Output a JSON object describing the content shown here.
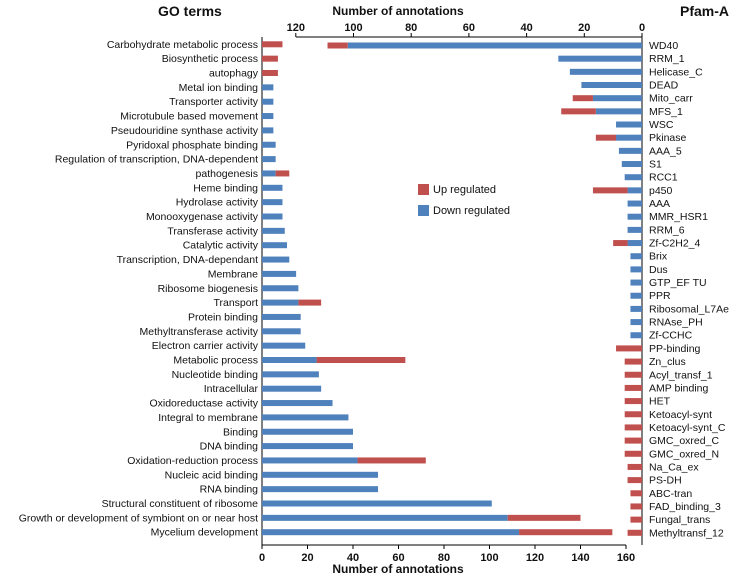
{
  "chart_data": [
    {
      "type": "bar",
      "orientation": "horizontal",
      "stacked": true,
      "title": "GO terms",
      "xlabel": "Number of annotations",
      "xlim": [
        0,
        160
      ],
      "xticks": [
        "0",
        "20",
        "40",
        "60",
        "80",
        "100",
        "120",
        "140",
        "160"
      ],
      "categories": [
        "Carbohydrate metabolic process",
        "Biosynthetic process",
        "autophagy",
        "Metal ion binding",
        "Transporter activity",
        "Microtubule based movement",
        "Pseudouridine synthase activity",
        "Pyridoxal phosphate binding",
        "Regulation of transcription, DNA-dependent",
        "pathogenesis",
        "Heme binding",
        "Hydrolase activity",
        "Monooxygenase activity",
        "Transferase activity",
        "Catalytic activity",
        "Transcription, DNA-dependant",
        "Membrane",
        "Ribosome biogenesis",
        "Transport",
        "Protein binding",
        "Methyltransferase activity",
        "Electron carrier activity",
        "Metabolic process",
        "Nucleotide binding",
        "Intracellular",
        "Oxidoreductase activity",
        "Integral to membrane",
        "Binding",
        "DNA binding",
        "Oxidation-reduction process",
        "Nucleic acid binding",
        "RNA binding",
        "Structural constituent of ribosome",
        "Growth or development of symbiont on or near host",
        "Mycelium development"
      ],
      "series": [
        {
          "name": "Down regulated",
          "color": "#4f81bd",
          "values": [
            0,
            0,
            0,
            5,
            5,
            5,
            5,
            6,
            6,
            6,
            9,
            9,
            9,
            10,
            11,
            12,
            15,
            16,
            16,
            17,
            17,
            19,
            24,
            25,
            26,
            31,
            38,
            40,
            40,
            42,
            51,
            51,
            101,
            108,
            113
          ]
        },
        {
          "name": "Up regulated",
          "color": "#c0504d",
          "values": [
            9,
            7,
            7,
            0,
            0,
            0,
            0,
            0,
            0,
            6,
            0,
            0,
            0,
            0,
            0,
            0,
            0,
            0,
            10,
            0,
            0,
            0,
            39,
            0,
            0,
            0,
            0,
            0,
            0,
            30,
            0,
            0,
            0,
            32,
            41
          ]
        }
      ]
    },
    {
      "type": "bar",
      "orientation": "horizontal",
      "stacked": true,
      "x_reversed": true,
      "title": "Pfam-A",
      "xlabel": "Number of annotations",
      "xlim": [
        0,
        120
      ],
      "xticks": [
        "120",
        "100",
        "80",
        "60",
        "40",
        "20",
        "0"
      ],
      "categories": [
        "WD40",
        "RRM_1",
        "Helicase_C",
        "DEAD",
        "Mito_carr",
        "MFS_1",
        "WSC",
        "Pkinase",
        "AAA_5",
        "S1",
        "RCC1",
        "p450",
        "AAA",
        "MMR_HSR1",
        "RRM_6",
        "Zf-C2H2_4",
        "Brix",
        "Dus",
        "GTP_EF TU",
        "PPR",
        "Ribosomal_L7Ae",
        "RNAse_PH",
        "Zf-CCHC",
        "PP-binding",
        "Zn_clus",
        "Acyl_transf_1",
        "AMP binding",
        "HET",
        "Ketoacyl-synt",
        "Ketoacyl-synt_C",
        "GMC_oxred_C",
        "GMC_oxred_N",
        "Na_Ca_ex",
        "PS-DH",
        "ABC-tran",
        "FAD_binding_3",
        "Fungal_trans",
        "Methyltransf_12"
      ],
      "series": [
        {
          "name": "Down regulated",
          "color": "#4f81bd",
          "values": [
            102,
            29,
            25,
            21,
            17,
            16,
            9,
            9,
            8,
            7,
            6,
            5,
            5,
            5,
            5,
            5,
            4,
            4,
            4,
            4,
            4,
            4,
            4,
            0,
            0,
            0,
            0,
            0,
            0,
            0,
            0,
            0,
            0,
            0,
            0,
            0,
            0,
            0
          ]
        },
        {
          "name": "Up regulated",
          "color": "#c0504d",
          "values": [
            7,
            0,
            0,
            0,
            7,
            12,
            0,
            7,
            0,
            0,
            0,
            12,
            0,
            0,
            0,
            5,
            0,
            0,
            0,
            0,
            0,
            0,
            0,
            9,
            6,
            6,
            6,
            6,
            6,
            6,
            6,
            6,
            5,
            5,
            4,
            4,
            4,
            5
          ]
        }
      ]
    }
  ],
  "legend": [
    {
      "label": "Up regulated",
      "color": "#c0504d"
    },
    {
      "label": "Down regulated",
      "color": "#4f81bd"
    }
  ]
}
